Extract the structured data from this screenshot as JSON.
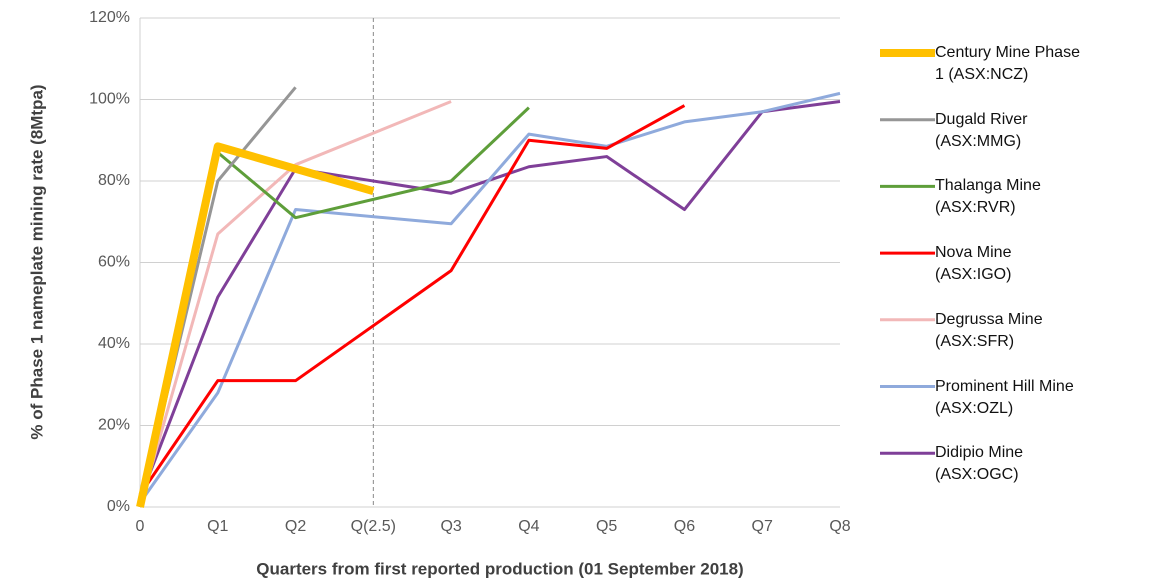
{
  "chart_data": {
    "type": "line",
    "ylabel": "% of Phase 1 nameplate mining rate (8Mtpa)",
    "xlabel": "Quarters from first reported production (01 September 2018)",
    "xlim": [
      0,
      9
    ],
    "ylim": [
      0,
      120
    ],
    "xticks": [
      {
        "value": 0,
        "label": "0"
      },
      {
        "value": 1,
        "label": "Q1"
      },
      {
        "value": 2,
        "label": "Q2"
      },
      {
        "value": 3,
        "label": "Q(2.5)"
      },
      {
        "value": 4,
        "label": "Q3"
      },
      {
        "value": 5,
        "label": "Q4"
      },
      {
        "value": 6,
        "label": "Q5"
      },
      {
        "value": 7,
        "label": "Q6"
      },
      {
        "value": 8,
        "label": "Q7"
      },
      {
        "value": 9,
        "label": "Q8"
      }
    ],
    "yticks": [
      {
        "value": 0,
        "label": "0%"
      },
      {
        "value": 20,
        "label": "20%"
      },
      {
        "value": 40,
        "label": "40%"
      },
      {
        "value": 60,
        "label": "60%"
      },
      {
        "value": 80,
        "label": "80%"
      },
      {
        "value": 100,
        "label": "100%"
      },
      {
        "value": 120,
        "label": "120%"
      }
    ],
    "grid": true,
    "vline": 3,
    "legend": "right",
    "series": [
      {
        "name": "Century Mine Phase 1 (ASX:NCZ)",
        "color": "#ffc000",
        "width": 8,
        "x": [
          0,
          1,
          3
        ],
        "values": [
          0,
          88.5,
          77.5
        ]
      },
      {
        "name": "Dugald River (ASX:MMG)",
        "color": "#969696",
        "width": 3,
        "x": [
          0,
          1,
          2
        ],
        "values": [
          0,
          80,
          103
        ]
      },
      {
        "name": "Thalanga Mine (ASX:RVR)",
        "color": "#5e9e3a",
        "width": 3,
        "x": [
          0,
          1,
          2,
          4,
          5
        ],
        "values": [
          0,
          87,
          71,
          80,
          98
        ]
      },
      {
        "name": "Nova Mine (ASX:IGO)",
        "color": "#ff0000",
        "width": 3,
        "x": [
          0,
          1,
          2,
          4,
          5,
          6,
          7
        ],
        "values": [
          3,
          31,
          31,
          58,
          90,
          88,
          98.5
        ]
      },
      {
        "name": "Degrussa Mine (ASX:SFR)",
        "color": "#f2b8b8",
        "width": 3,
        "x": [
          0,
          1,
          2,
          4
        ],
        "values": [
          0,
          67,
          84,
          99.5
        ]
      },
      {
        "name": "Prominent Hill Mine (ASX:OZL)",
        "color": "#8faadc",
        "width": 3,
        "x": [
          0,
          1,
          2,
          4,
          5,
          6,
          7,
          8,
          9
        ],
        "values": [
          1,
          28,
          73,
          69.5,
          91.5,
          88.5,
          94.5,
          97,
          101.5
        ]
      },
      {
        "name": "Didipio Mine (ASX:OGC)",
        "color": "#7f3f98",
        "width": 3,
        "x": [
          0,
          1,
          2,
          4,
          5,
          6,
          7,
          8,
          9
        ],
        "values": [
          2,
          51.5,
          83,
          77,
          83.5,
          86,
          73,
          97,
          99.5
        ]
      }
    ]
  }
}
